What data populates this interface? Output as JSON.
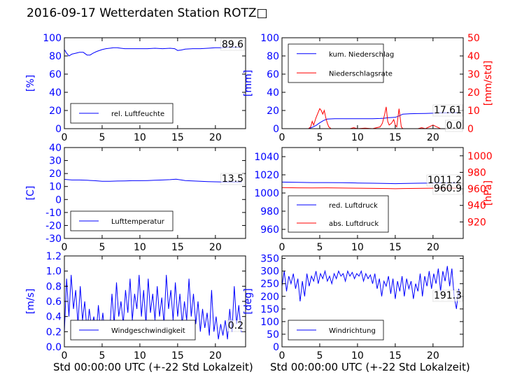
{
  "title": "2016-09-17 Wetterdaten Station ROTZ□",
  "xlabel_left": "Std 00:00:00 UTC (+-22 Std Lokalzeit)",
  "xlabel_right": "Std 00:00:00 UTC (+-22 Std Lokalzeit)",
  "colors": {
    "blue": "#0000ff",
    "red": "#ff0000",
    "black": "#000000"
  },
  "chart_data": [
    {
      "id": "humidity",
      "type": "line",
      "ylabel": "[%]",
      "ylim": [
        0,
        100
      ],
      "yticks": [
        0,
        20,
        40,
        60,
        80,
        100
      ],
      "xlim": [
        0,
        24
      ],
      "xticks": [
        0,
        5,
        10,
        15,
        20
      ],
      "legend": [
        "rel. Luftfeuchte"
      ],
      "legend_position": "lower-left",
      "annotation": "89.6",
      "series": [
        {
          "name": "rel. Luftfeuchte",
          "color": "#0000ff",
          "x": [
            0,
            0.3,
            0.6,
            1,
            1.5,
            2,
            2.5,
            3,
            3.4,
            3.8,
            4.3,
            5,
            5.5,
            6,
            6.5,
            7,
            7.5,
            8,
            9,
            10,
            11,
            12,
            13,
            14,
            14.6,
            15,
            15.5,
            16,
            17,
            18,
            19,
            20,
            21,
            22,
            23,
            23.5
          ],
          "y": [
            87,
            83,
            80,
            82,
            83,
            84,
            84,
            81,
            81,
            83,
            85,
            87,
            88,
            88.5,
            89,
            89,
            88.5,
            88,
            88,
            88,
            88,
            88.5,
            88,
            88.5,
            88,
            86,
            86.5,
            87.5,
            88,
            88,
            88.5,
            89,
            89,
            89.5,
            89.5,
            89.6
          ]
        }
      ]
    },
    {
      "id": "precipitation",
      "type": "line",
      "ylabel": "[mm]",
      "ylabel_right": "[mm/std]",
      "ylim": [
        0,
        100
      ],
      "yticks": [
        0,
        20,
        40,
        60,
        80,
        100
      ],
      "ylim_right": [
        0,
        50
      ],
      "yticks_right": [
        0,
        10,
        20,
        30,
        40,
        50
      ],
      "xlim": [
        0,
        24
      ],
      "xticks": [
        0,
        5,
        10,
        15,
        20
      ],
      "legend": [
        "kum. Niederschlag",
        "Niederschlagsrate"
      ],
      "legend_position": "upper-left",
      "annotations": [
        "17.61",
        "0.0"
      ],
      "series": [
        {
          "name": "kum. Niederschlag",
          "axis": "left",
          "color": "#0000ff",
          "x": [
            0,
            3.5,
            4,
            4.5,
            5,
            5.5,
            6,
            7,
            8,
            9,
            10,
            11,
            12,
            13,
            13.5,
            14,
            15,
            15.5,
            16,
            17,
            18,
            19,
            20,
            21,
            22,
            23.5
          ],
          "y": [
            0,
            0,
            1.5,
            3.5,
            6.5,
            9,
            10.5,
            11,
            11,
            11,
            11,
            11,
            11,
            11.2,
            11.5,
            12,
            12.5,
            14,
            16,
            16.5,
            16.6,
            16.8,
            17,
            17.3,
            17.5,
            17.61
          ]
        },
        {
          "name": "Niederschlagsrate",
          "axis": "right",
          "color": "#ff0000",
          "x": [
            0,
            3.5,
            3.8,
            4,
            4.2,
            4.5,
            4.8,
            5,
            5.2,
            5.4,
            5.6,
            5.8,
            6,
            6.2,
            6.5,
            9,
            9.5,
            10,
            11,
            12,
            13,
            13.3,
            13.6,
            13.8,
            14,
            14.2,
            14.5,
            14.8,
            15,
            15.2,
            15.5,
            15.8,
            16,
            18,
            18.5,
            19,
            20,
            20.5,
            21,
            22,
            23.5
          ],
          "y": [
            0,
            0,
            1,
            4,
            2,
            6,
            9,
            11,
            10,
            8,
            10,
            6,
            3,
            1,
            0,
            0,
            0.5,
            0,
            0.3,
            0,
            1,
            3,
            8,
            12,
            4,
            2,
            3,
            5,
            2,
            1,
            11,
            1,
            0,
            0,
            0.5,
            0,
            2,
            1,
            0,
            0,
            0
          ]
        }
      ]
    },
    {
      "id": "temperature",
      "type": "line",
      "ylabel": "[C]",
      "ylim": [
        -30,
        40
      ],
      "yticks": [
        -30,
        -20,
        -10,
        0,
        10,
        20,
        30,
        40
      ],
      "xlim": [
        0,
        24
      ],
      "xticks": [
        0,
        5,
        10,
        15,
        20
      ],
      "legend": [
        "Lufttemperatur"
      ],
      "legend_position": "lower-left",
      "annotation": "13.5",
      "series": [
        {
          "name": "Lufttemperatur",
          "color": "#0000ff",
          "x": [
            0,
            1,
            2,
            3,
            4,
            5,
            6,
            7,
            8,
            9,
            10,
            11,
            12,
            13,
            14,
            14.8,
            15.5,
            16,
            17,
            18,
            19,
            20,
            21,
            22,
            23.5
          ],
          "y": [
            15.5,
            15,
            15,
            14.8,
            14.5,
            14,
            14,
            14.2,
            14.3,
            14.5,
            14.5,
            14.6,
            14.8,
            15,
            15.3,
            15.6,
            15,
            14.6,
            14.3,
            14,
            13.8,
            13.6,
            13.5,
            13.5,
            13.5
          ]
        }
      ]
    },
    {
      "id": "pressure",
      "type": "line",
      "ylabel": "",
      "ylabel_right": "[hPa]",
      "ylim": [
        950,
        1050
      ],
      "yticks": [
        960,
        980,
        1000,
        1020,
        1040
      ],
      "ylim_right": [
        900,
        1010
      ],
      "yticks_right": [
        920,
        940,
        960,
        980,
        1000
      ],
      "xlim": [
        0,
        24
      ],
      "xticks": [
        0,
        5,
        10,
        15,
        20
      ],
      "legend": [
        "red. Luftdruck",
        "abs. Luftdruck"
      ],
      "legend_position": "lower-left",
      "annotations": [
        "1011.2",
        "960.9"
      ],
      "series": [
        {
          "name": "red. Luftdruck",
          "axis": "left",
          "color": "#0000ff",
          "x": [
            0,
            2,
            4,
            6,
            8,
            10,
            12,
            14,
            15,
            16,
            18,
            20,
            22,
            23.5
          ],
          "y": [
            1012,
            1011.8,
            1011.5,
            1011.5,
            1011.3,
            1011,
            1010.8,
            1010.5,
            1010.3,
            1010.5,
            1010.8,
            1011,
            1011.1,
            1011.2
          ]
        },
        {
          "name": "abs. Luftdruck",
          "axis": "right",
          "color": "#ff0000",
          "x": [
            0,
            2,
            4,
            6,
            8,
            10,
            12,
            14,
            15,
            16,
            18,
            20,
            22,
            23.5
          ],
          "y": [
            961.5,
            961.3,
            961.2,
            961.3,
            961,
            960.8,
            960.6,
            960.4,
            960.2,
            960.4,
            960.6,
            960.8,
            960.9,
            960.9
          ]
        }
      ]
    },
    {
      "id": "wind_speed",
      "type": "line",
      "ylabel": "[m/s]",
      "ylim": [
        0,
        1.2
      ],
      "yticks": [
        0.0,
        0.2,
        0.4,
        0.6,
        0.8,
        1.0,
        1.2
      ],
      "xlim": [
        0,
        24
      ],
      "xticks": [
        0,
        5,
        10,
        15,
        20
      ],
      "legend": [
        "Windgeschwindigkeit"
      ],
      "legend_position": "lower-left",
      "annotation": "0.2",
      "series": [
        {
          "name": "Windgeschwindigkeit",
          "color": "#0000ff",
          "x": [
            0,
            0.3,
            0.6,
            0.9,
            1.2,
            1.5,
            1.8,
            2.1,
            2.4,
            2.7,
            3,
            3.3,
            3.6,
            3.9,
            4.2,
            4.5,
            4.8,
            5.1,
            5.4,
            5.7,
            6,
            6.3,
            6.6,
            6.9,
            7.2,
            7.5,
            7.8,
            8.1,
            8.4,
            8.7,
            9,
            9.3,
            9.6,
            9.9,
            10.2,
            10.5,
            10.8,
            11.1,
            11.4,
            11.7,
            12,
            12.3,
            12.6,
            12.9,
            13.2,
            13.5,
            13.8,
            14.1,
            14.4,
            14.7,
            15,
            15.3,
            15.6,
            15.9,
            16.2,
            16.5,
            16.8,
            17.1,
            17.4,
            17.7,
            18,
            18.3,
            18.6,
            18.9,
            19.2,
            19.5,
            19.8,
            20.1,
            20.4,
            20.7,
            21,
            21.3,
            21.6,
            21.9,
            22.2,
            22.5,
            22.8,
            23.1,
            23.4,
            23.6
          ],
          "y": [
            0.2,
            0.9,
            0.4,
            0.95,
            0.5,
            0.75,
            0.3,
            0.8,
            0.35,
            0.6,
            0.2,
            0.5,
            0.25,
            0.4,
            0.15,
            0.55,
            0.2,
            0.45,
            0.1,
            0.35,
            0.2,
            0.7,
            0.3,
            0.85,
            0.4,
            0.6,
            0.3,
            0.75,
            0.45,
            0.9,
            0.35,
            0.7,
            0.5,
            0.95,
            0.4,
            0.75,
            0.3,
            0.9,
            0.45,
            0.7,
            0.35,
            0.8,
            0.4,
            0.65,
            0.3,
            0.95,
            0.5,
            0.75,
            0.35,
            0.85,
            0.4,
            0.7,
            0.3,
            0.6,
            0.35,
            0.9,
            0.4,
            0.7,
            0.3,
            0.6,
            0.2,
            0.5,
            0.25,
            0.45,
            0.15,
            0.75,
            0.2,
            0.4,
            0.1,
            0.3,
            0.15,
            0.35,
            0.1,
            0.5,
            0.2,
            0.8,
            0.3,
            0.55,
            0.2,
            0.2
          ]
        }
      ]
    },
    {
      "id": "wind_direction",
      "type": "line",
      "ylabel": "[deg]",
      "ylim": [
        0,
        360
      ],
      "yticks": [
        0,
        50,
        100,
        150,
        200,
        250,
        300,
        350
      ],
      "xlim": [
        0,
        24
      ],
      "xticks": [
        0,
        5,
        10,
        15,
        20
      ],
      "legend": [
        "Windrichtung"
      ],
      "legend_position": "lower-left",
      "annotation": "191.3",
      "series": [
        {
          "name": "Windrichtung",
          "color": "#0000ff",
          "x": [
            0,
            0.3,
            0.6,
            0.9,
            1.2,
            1.5,
            1.8,
            2.1,
            2.4,
            2.7,
            3,
            3.3,
            3.6,
            3.9,
            4.2,
            4.5,
            4.8,
            5.1,
            5.4,
            5.7,
            6,
            6.3,
            6.6,
            6.9,
            7.2,
            7.5,
            7.8,
            8.1,
            8.4,
            8.7,
            9,
            9.3,
            9.6,
            9.9,
            10.2,
            10.5,
            10.8,
            11.1,
            11.4,
            11.7,
            12,
            12.3,
            12.6,
            12.9,
            13.2,
            13.5,
            13.8,
            14.1,
            14.4,
            14.7,
            15,
            15.3,
            15.6,
            15.9,
            16.2,
            16.5,
            16.8,
            17.1,
            17.4,
            17.7,
            18,
            18.3,
            18.6,
            18.9,
            19.2,
            19.5,
            19.8,
            20.1,
            20.4,
            20.7,
            21,
            21.3,
            21.6,
            21.9,
            22.2,
            22.5,
            22.8,
            23.1,
            23.4,
            23.6
          ],
          "y": [
            240,
            300,
            220,
            280,
            250,
            290,
            230,
            270,
            180,
            260,
            200,
            290,
            240,
            280,
            260,
            300,
            250,
            290,
            270,
            300,
            260,
            280,
            250,
            290,
            270,
            300,
            280,
            290,
            260,
            300,
            280,
            295,
            270,
            290,
            280,
            300,
            260,
            290,
            270,
            285,
            250,
            290,
            230,
            270,
            200,
            260,
            240,
            280,
            210,
            270,
            190,
            260,
            220,
            280,
            200,
            270,
            230,
            260,
            190,
            250,
            220,
            290,
            200,
            280,
            240,
            300,
            230,
            290,
            250,
            310,
            220,
            300,
            260,
            320,
            240,
            310,
            200,
            150,
            230,
            191.3
          ]
        }
      ]
    }
  ]
}
